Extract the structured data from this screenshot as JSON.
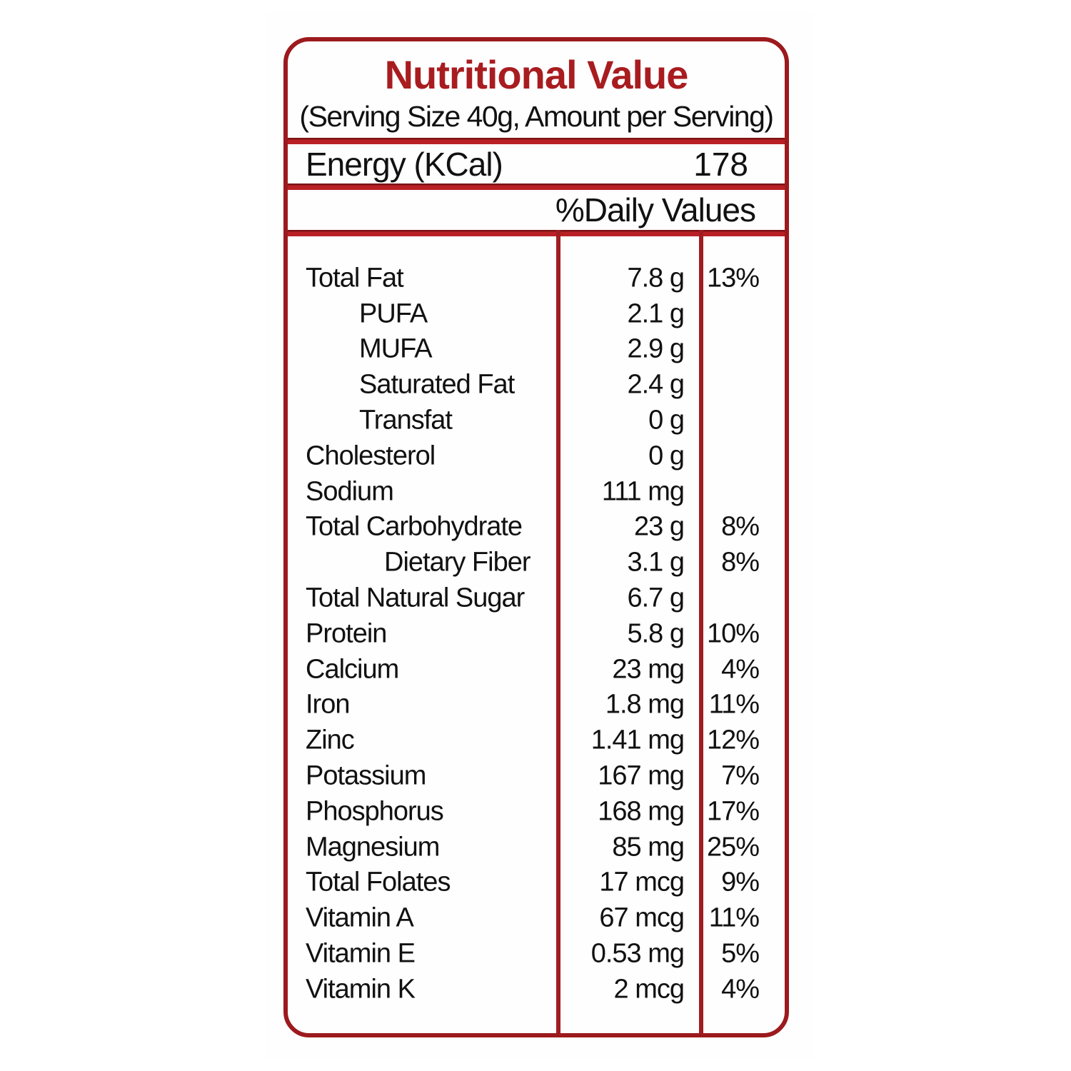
{
  "label": {
    "title": "Nutritional Value",
    "serving_line": "(Serving Size 40g, Amount per Serving)",
    "energy": {
      "name": "Energy (KCal)",
      "value": "178"
    },
    "daily_values_header": "%Daily Values",
    "rows": [
      {
        "name": "Total Fat",
        "indent": 0,
        "amount": "7.8 g",
        "dv": "13%"
      },
      {
        "name": "PUFA",
        "indent": 1,
        "amount": "2.1 g",
        "dv": ""
      },
      {
        "name": "MUFA",
        "indent": 1,
        "amount": "2.9 g",
        "dv": ""
      },
      {
        "name": "Saturated Fat",
        "indent": 1,
        "amount": "2.4 g",
        "dv": ""
      },
      {
        "name": "Transfat",
        "indent": 1,
        "amount": "0 g",
        "dv": ""
      },
      {
        "name": "Cholesterol",
        "indent": 0,
        "amount": "0 g",
        "dv": ""
      },
      {
        "name": "Sodium",
        "indent": 0,
        "amount": "111 mg",
        "dv": ""
      },
      {
        "name": "Total Carbohydrate",
        "indent": 0,
        "amount": "23 g",
        "dv": "8%"
      },
      {
        "name": "Dietary Fiber",
        "indent": 2,
        "amount": "3.1 g",
        "dv": "8%"
      },
      {
        "name": "Total Natural Sugar",
        "indent": 0,
        "amount": "6.7 g",
        "dv": ""
      },
      {
        "name": "Protein",
        "indent": 0,
        "amount": "5.8 g",
        "dv": "10%"
      },
      {
        "name": "Calcium",
        "indent": 0,
        "amount": "23 mg",
        "dv": "4%"
      },
      {
        "name": "Iron",
        "indent": 0,
        "amount": "1.8 mg",
        "dv": "11%"
      },
      {
        "name": "Zinc",
        "indent": 0,
        "amount": "1.41 mg",
        "dv": "12%"
      },
      {
        "name": "Potassium",
        "indent": 0,
        "amount": "167 mg",
        "dv": "7%"
      },
      {
        "name": "Phosphorus",
        "indent": 0,
        "amount": "168 mg",
        "dv": "17%"
      },
      {
        "name": "Magnesium",
        "indent": 0,
        "amount": "85 mg",
        "dv": "25%"
      },
      {
        "name": "Total Folates",
        "indent": 0,
        "amount": "17 mcg",
        "dv": "9%"
      },
      {
        "name": "Vitamin A",
        "indent": 0,
        "amount": "67 mcg",
        "dv": "11%"
      },
      {
        "name": "Vitamin E",
        "indent": 0,
        "amount": "0.53 mg",
        "dv": "5%"
      },
      {
        "name": "Vitamin K",
        "indent": 0,
        "amount": "2 mcg",
        "dv": "4%"
      }
    ]
  },
  "colors": {
    "border_red": "#9c1a1d",
    "band_red": "#b92025",
    "band_red_dark": "#7d1316",
    "title_red": "#a81c20",
    "text": "#111111",
    "background": "#ffffff"
  }
}
